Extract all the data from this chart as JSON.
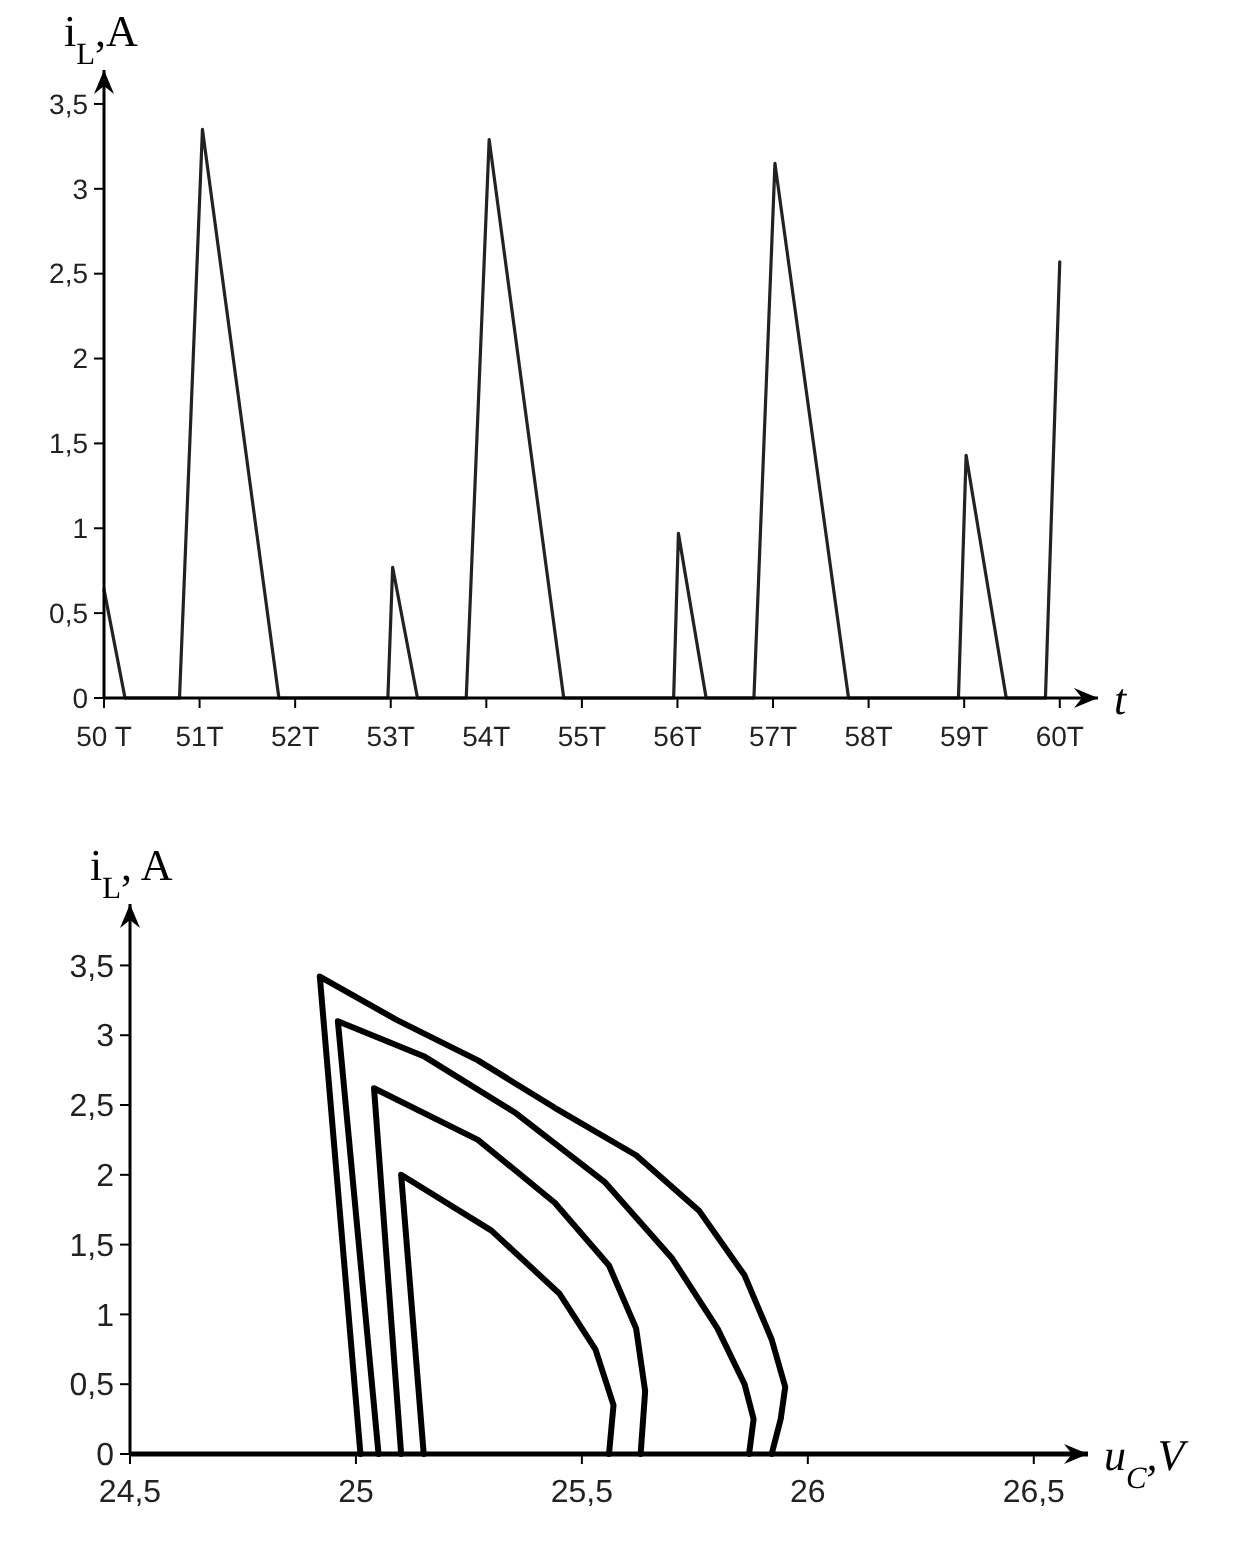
{
  "chart_data": [
    {
      "type": "line",
      "ylabel": "i$_{L}$,A",
      "xlabel": "t",
      "xlim": [
        50,
        60.4
      ],
      "ylim": [
        0,
        3.7
      ],
      "xticks": [
        {
          "value": 50,
          "label": "50 T"
        },
        {
          "value": 51,
          "label": "51T"
        },
        {
          "value": 52,
          "label": "52T"
        },
        {
          "value": 53,
          "label": "53T"
        },
        {
          "value": 54,
          "label": "54T"
        },
        {
          "value": 55,
          "label": "55T"
        },
        {
          "value": 56,
          "label": "56T"
        },
        {
          "value": 57,
          "label": "57T"
        },
        {
          "value": 58,
          "label": "58T"
        },
        {
          "value": 59,
          "label": "59T"
        },
        {
          "value": 60,
          "label": "60T"
        }
      ],
      "yticks": [
        0,
        {
          "value": 0.5,
          "label": "0,5"
        },
        1,
        {
          "value": 1.5,
          "label": "1,5"
        },
        2,
        {
          "value": 2.5,
          "label": "2,5"
        },
        3,
        {
          "value": 3.5,
          "label": "3,5"
        }
      ],
      "series": [
        {
          "color": "#222222",
          "x": [
            50,
            50.22,
            50.79,
            51.03,
            51.83,
            52.97,
            53.02,
            53.28,
            53.79,
            54.03,
            54.81,
            55.96,
            56.01,
            56.3,
            56.8,
            57.02,
            57.79,
            58.94,
            59.02,
            59.44,
            59.85,
            60
          ],
          "values": [
            0.64,
            0,
            0,
            3.35,
            0,
            0,
            0.77,
            0,
            0,
            3.29,
            0,
            0,
            0.97,
            0,
            0,
            3.15,
            0,
            0,
            1.43,
            0,
            0,
            2.57
          ]
        }
      ]
    },
    {
      "type": "line",
      "ylabel": "i$_{L}$, A",
      "xlabel": "u$_{C}$,V",
      "xlim": [
        24.5,
        26.62
      ],
      "ylim": [
        0,
        3.94
      ],
      "xticks": [
        {
          "value": 24.5,
          "label": "24,5"
        },
        25,
        {
          "value": 25.5,
          "label": "25,5"
        },
        26,
        {
          "value": 26.5,
          "label": "26,5"
        }
      ],
      "yticks": [
        0,
        {
          "value": 0.5,
          "label": "0,5"
        },
        1,
        {
          "value": 1.5,
          "label": "1,5"
        },
        2,
        {
          "value": 2.5,
          "label": "2,5"
        },
        3,
        {
          "value": 3.5,
          "label": "3,5"
        }
      ],
      "series": [
        {
          "color": "#000000",
          "x": [
            25.01,
            24.92,
            25.09,
            25.27,
            25.44,
            25.62,
            25.76,
            25.86,
            25.92,
            25.95,
            25.94,
            25.92
          ],
          "values": [
            0,
            3.42,
            3.11,
            2.82,
            2.48,
            2.14,
            1.74,
            1.28,
            0.82,
            0.48,
            0.25,
            0
          ]
        },
        {
          "color": "#000000",
          "x": [
            25.05,
            24.96,
            25.15,
            25.35,
            25.55,
            25.7,
            25.8,
            25.86,
            25.88,
            25.87
          ],
          "values": [
            0,
            3.1,
            2.85,
            2.45,
            1.95,
            1.4,
            0.9,
            0.5,
            0.25,
            0
          ]
        },
        {
          "color": "#000000",
          "x": [
            25.1,
            25.04,
            25.27,
            25.44,
            25.56,
            25.62,
            25.64,
            25.63
          ],
          "values": [
            0,
            2.62,
            2.25,
            1.8,
            1.35,
            0.9,
            0.45,
            0
          ]
        },
        {
          "color": "#000000",
          "x": [
            25.15,
            25.1,
            25.3,
            25.45,
            25.53,
            25.57,
            25.56
          ],
          "values": [
            0,
            2.0,
            1.6,
            1.15,
            0.75,
            0.35,
            0
          ]
        }
      ]
    }
  ]
}
